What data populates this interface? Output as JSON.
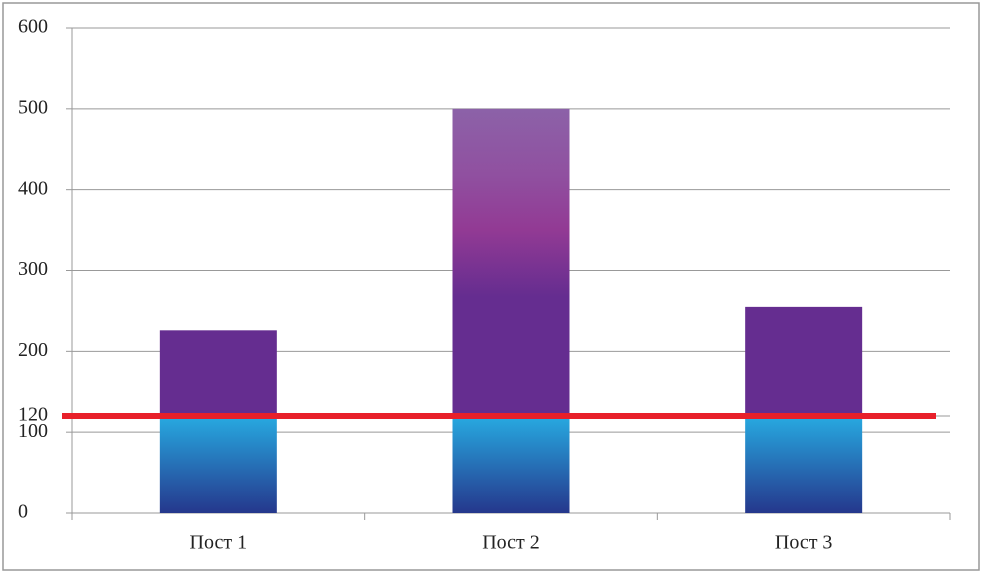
{
  "chart_data": {
    "type": "bar",
    "stacked": true,
    "categories": [
      "Пост 1",
      "Пост 2",
      "Пост 3"
    ],
    "series": [
      {
        "color": "#27aae1",
        "values": [
          120,
          120,
          120
        ]
      },
      {
        "color": "#652d90",
        "values": [
          106,
          380,
          135
        ]
      }
    ],
    "ylim": [
      0,
      600
    ],
    "yticks": [
      0,
      100,
      120,
      200,
      300,
      400,
      500,
      600
    ],
    "grid": true,
    "threshold": {
      "value": 120,
      "color": "#e8202a"
    }
  }
}
